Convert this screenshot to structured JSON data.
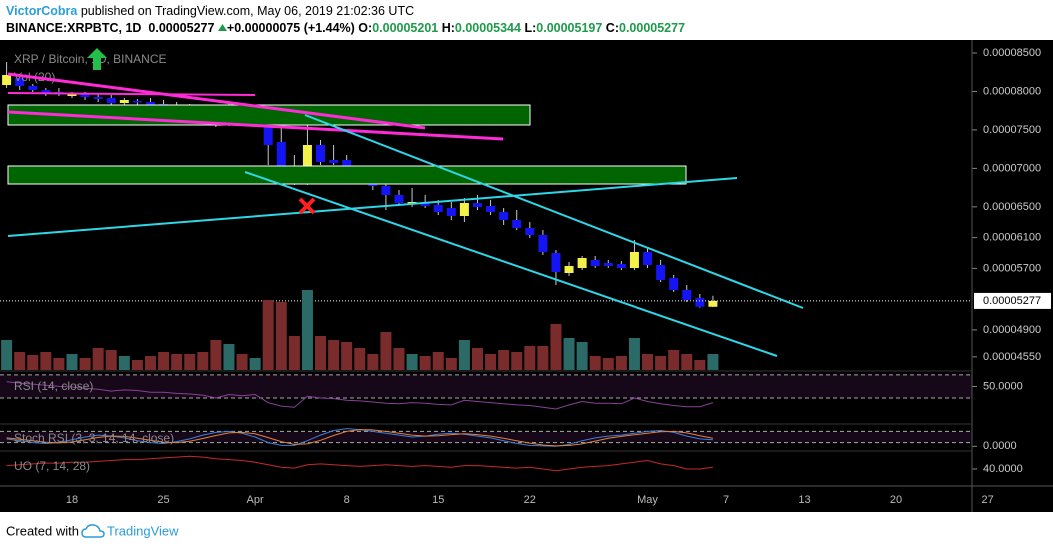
{
  "header": {
    "author": "VictorCobra",
    "published": "published on TradingView.com, May 06, 2019 21:02:36 UTC",
    "symbol": "BINANCE:XRPBTC, 1D",
    "change": "+0.00000075 (+1.44%)",
    "o": "O:",
    "h": "H:",
    "l": "L:",
    "c": "C:"
  },
  "footer": {
    "created": "Created with",
    "brand": "TradingView"
  },
  "chart_data": [
    {
      "type": "candlestick",
      "title": "XRP / Bitcoin, 1D, BINANCE",
      "categories": [
        null,
        null,
        null,
        null,
        null,
        "18",
        null,
        null,
        null,
        null,
        null,
        null,
        "25",
        null,
        null,
        null,
        null,
        null,
        null,
        "Apr",
        null,
        null,
        null,
        null,
        null,
        null,
        "8",
        null,
        null,
        null,
        null,
        null,
        null,
        "15",
        null,
        null,
        null,
        null,
        null,
        null,
        "22",
        null,
        null,
        null,
        null,
        null,
        null,
        null,
        null,
        "May",
        null,
        null,
        null,
        null,
        null,
        "7",
        null,
        null,
        null,
        null,
        null,
        "13",
        null,
        null,
        null,
        null,
        null,
        null,
        "20",
        null,
        null,
        null,
        null,
        null,
        null,
        "27"
      ],
      "open": [
        8.084e-05,
        8.175e-05,
        8.071e-05,
        8.019e-05,
        7.993e-05,
        7.941e-05,
        7.967e-05,
        7.928e-05,
        7.915e-05,
        7.85e-05,
        7.876e-05,
        7.863e-05,
        7.837e-05,
        7.824e-05,
        7.798e-05,
        7.759e-05,
        7.681e-05,
        7.577e-05,
        7.655e-05,
        7.603e-05,
        7.629e-05,
        7.343e-05,
        7.005e-05,
        6.849e-05,
        7.304e-05,
        7.109e-05,
        7.109e-05,
        6.953e-05,
        6.875e-05,
        6.771e-05,
        6.654e-05,
        6.537e-05,
        6.563e-05,
        6.524e-05,
        6.485e-05,
        6.381e-05,
        6.55e-05,
        6.511e-05,
        6.433e-05,
        6.329e-05,
        6.225e-05,
        6.134e-05,
        5.9e-05,
        5.64e-05,
        5.705e-05,
        5.809e-05,
        5.77e-05,
        5.757e-05,
        5.705e-05,
        5.913e-05,
        5.744e-05,
        5.575e-05,
        5.419e-05,
        5.315e-05,
        5.201e-05,
        null,
        null,
        null,
        null,
        null,
        null,
        null,
        null,
        null,
        null,
        null,
        null,
        null,
        null,
        null,
        null,
        null,
        null,
        null,
        null,
        null
      ],
      "high": [
        8.383e-05,
        8.201e-05,
        8.097e-05,
        8.045e-05,
        8.045e-05,
        7.993e-05,
        7.993e-05,
        7.98e-05,
        7.954e-05,
        7.915e-05,
        7.902e-05,
        7.915e-05,
        7.889e-05,
        7.863e-05,
        7.837e-05,
        7.811e-05,
        7.733e-05,
        7.837e-05,
        7.707e-05,
        7.733e-05,
        7.668e-05,
        7.525e-05,
        7.174e-05,
        7.694e-05,
        7.369e-05,
        7.304e-05,
        7.174e-05,
        7.005e-05,
        6.979e-05,
        6.823e-05,
        6.719e-05,
        6.745e-05,
        6.654e-05,
        6.589e-05,
        6.563e-05,
        6.615e-05,
        6.654e-05,
        6.589e-05,
        6.485e-05,
        6.459e-05,
        6.303e-05,
        6.199e-05,
        5.939e-05,
        5.783e-05,
        5.861e-05,
        5.861e-05,
        5.809e-05,
        5.796e-05,
        6.069e-05,
        5.965e-05,
        5.809e-05,
        5.614e-05,
        5.484e-05,
        5.367e-05,
        5.344e-05,
        null,
        null,
        null,
        null,
        null,
        null,
        null,
        null,
        null,
        null,
        null,
        null,
        null,
        null,
        null,
        null,
        null,
        null,
        null,
        null,
        null
      ],
      "low": [
        8.045e-05,
        8.019e-05,
        7.993e-05,
        7.941e-05,
        7.941e-05,
        7.915e-05,
        7.889e-05,
        7.863e-05,
        7.811e-05,
        7.824e-05,
        7.824e-05,
        7.785e-05,
        7.785e-05,
        7.733e-05,
        7.707e-05,
        7.655e-05,
        7.538e-05,
        7.551e-05,
        7.577e-05,
        7.577e-05,
        7.044e-05,
        6.823e-05,
        6.784e-05,
        6.784e-05,
        7.044e-05,
        7.044e-05,
        6.901e-05,
        6.823e-05,
        6.719e-05,
        6.459e-05,
        6.524e-05,
        6.498e-05,
        6.485e-05,
        6.394e-05,
        6.329e-05,
        6.303e-05,
        6.459e-05,
        6.394e-05,
        6.264e-05,
        6.199e-05,
        6.095e-05,
        5.874e-05,
        5.484e-05,
        5.601e-05,
        5.679e-05,
        5.705e-05,
        5.705e-05,
        5.679e-05,
        5.679e-05,
        5.705e-05,
        5.523e-05,
        5.393e-05,
        5.263e-05,
        5.19e-05,
        5.197e-05,
        null,
        null,
        null,
        null,
        null,
        null,
        null,
        null,
        null,
        null,
        null,
        null,
        null,
        null,
        null,
        null,
        null,
        null,
        null,
        null,
        null
      ],
      "close": [
        8.214e-05,
        8.071e-05,
        8.019e-05,
        7.98e-05,
        7.967e-05,
        7.98e-05,
        7.928e-05,
        7.902e-05,
        7.85e-05,
        7.889e-05,
        7.863e-05,
        7.811e-05,
        7.824e-05,
        7.798e-05,
        7.759e-05,
        7.681e-05,
        7.577e-05,
        7.668e-05,
        7.616e-05,
        7.655e-05,
        7.304e-05,
        6.979e-05,
        6.823e-05,
        7.304e-05,
        7.083e-05,
        7.07e-05,
        6.953e-05,
        6.875e-05,
        6.771e-05,
        6.654e-05,
        6.55e-05,
        6.563e-05,
        6.511e-05,
        6.433e-05,
        6.381e-05,
        6.55e-05,
        6.498e-05,
        6.433e-05,
        6.329e-05,
        6.225e-05,
        6.134e-05,
        5.913e-05,
        5.653e-05,
        5.731e-05,
        5.835e-05,
        5.731e-05,
        5.731e-05,
        5.705e-05,
        5.913e-05,
        5.744e-05,
        5.549e-05,
        5.419e-05,
        5.289e-05,
        5.201e-05,
        5.277e-05,
        null,
        null,
        null,
        null,
        null,
        null,
        null,
        null,
        null,
        null,
        null,
        null,
        null,
        null,
        null,
        null,
        null,
        null,
        null,
        null,
        null
      ],
      "up_color": "#f2f24a",
      "down_color": "#1414f5",
      "wick_color": "#c8c8c8",
      "ylim": [
        4.379e-05,
        8.617e-05
      ],
      "yticks": [
        {
          "value": 8.5e-05,
          "label": "0.00008500"
        },
        {
          "value": 8e-05,
          "label": "0.00008000"
        },
        {
          "value": 7.5e-05,
          "label": "0.00007500"
        },
        {
          "value": 7e-05,
          "label": "0.00007000"
        },
        {
          "value": 6.5e-05,
          "label": "0.00006500"
        },
        {
          "value": 6.1e-05,
          "label": "0.00006100"
        },
        {
          "value": 5.7e-05,
          "label": "0.00005700"
        },
        {
          "value": 4.9e-05,
          "label": "0.00004900"
        },
        {
          "value": 4.55e-05,
          "label": "0.00004550"
        }
      ]
    },
    {
      "type": "bar",
      "title": "Vol (20)",
      "values": [
        30,
        18,
        15,
        18,
        12,
        16,
        12,
        22,
        20,
        14,
        10,
        14,
        18,
        16,
        16,
        18,
        30,
        26,
        16,
        12,
        70,
        68,
        34,
        80,
        34,
        30,
        28,
        22,
        16,
        38,
        22,
        16,
        14,
        18,
        12,
        30,
        22,
        16,
        20,
        18,
        24,
        24,
        46,
        32,
        28,
        14,
        12,
        14,
        32,
        16,
        14,
        20,
        16,
        10,
        16,
        null,
        null,
        null,
        null,
        null,
        null,
        null,
        null,
        null,
        null,
        null,
        null,
        null,
        null,
        null,
        null,
        null,
        null,
        null,
        null,
        null
      ],
      "up_color": "#2c6a68",
      "down_color": "#7a2c2c",
      "ylim": [
        0,
        100
      ]
    },
    {
      "type": "line",
      "title": "RSI (14, close)",
      "series": [
        {
          "color": "#8a3f9a",
          "values": [
            58,
            56,
            54,
            52,
            50,
            49,
            47,
            45,
            42,
            44,
            43,
            40,
            40,
            38,
            37,
            35,
            30,
            36,
            34,
            36,
            22,
            16,
            14,
            33,
            30,
            29,
            26,
            25,
            23,
            21,
            20,
            22,
            21,
            19,
            18,
            26,
            24,
            22,
            20,
            18,
            17,
            14,
            11,
            18,
            24,
            21,
            21,
            20,
            30,
            24,
            20,
            17,
            15,
            15,
            22,
            null,
            null,
            null,
            null,
            null,
            null,
            null,
            null,
            null,
            null,
            null,
            null,
            null,
            null,
            null,
            null,
            null,
            null,
            null,
            null,
            null
          ]
        }
      ],
      "ylim": [
        -15,
        75
      ],
      "yticks": [
        {
          "value": 50,
          "label": "50.0000"
        }
      ],
      "bands": [
        30,
        70
      ]
    },
    {
      "type": "line",
      "title": "Stoch RSI (3, 3, 14, 14, close)",
      "series": [
        {
          "color": "#3d7fd8",
          "values": [
            40,
            30,
            20,
            15,
            20,
            35,
            50,
            60,
            55,
            45,
            30,
            20,
            15,
            25,
            40,
            60,
            75,
            80,
            70,
            50,
            20,
            5,
            5,
            30,
            60,
            85,
            95,
            90,
            80,
            70,
            60,
            50,
            55,
            65,
            70,
            65,
            55,
            45,
            30,
            15,
            5,
            2,
            0,
            10,
            30,
            45,
            55,
            60,
            70,
            80,
            85,
            75,
            55,
            40,
            35,
            null,
            null,
            null,
            null,
            null,
            null,
            null,
            null,
            null,
            null,
            null,
            null,
            null,
            null,
            null,
            null,
            null,
            null,
            null,
            null,
            null
          ]
        },
        {
          "color": "#e0833a",
          "values": [
            45,
            38,
            30,
            22,
            18,
            23,
            35,
            48,
            55,
            53,
            43,
            32,
            22,
            20,
            27,
            42,
            58,
            72,
            75,
            67,
            47,
            25,
            10,
            13,
            32,
            58,
            80,
            90,
            88,
            80,
            70,
            60,
            55,
            57,
            63,
            67,
            63,
            55,
            43,
            30,
            17,
            7,
            2,
            4,
            13,
            28,
            43,
            53,
            62,
            70,
            78,
            80,
            72,
            57,
            43,
            null,
            null,
            null,
            null,
            null,
            null,
            null,
            null,
            null,
            null,
            null,
            null,
            null,
            null,
            null,
            null,
            null,
            null,
            null,
            null,
            null
          ]
        }
      ],
      "ylim": [
        -20,
        120
      ],
      "yticks": [
        {
          "value": 0,
          "label": "0.0000"
        }
      ],
      "bands": [
        20,
        80
      ]
    },
    {
      "type": "line",
      "title": "UO (7, 14, 28)",
      "series": [
        {
          "color": "#c42a2a",
          "values": [
            44,
            45,
            46,
            47,
            47,
            48,
            48,
            49,
            50,
            51,
            51,
            52,
            53,
            54,
            55,
            54,
            52,
            51,
            50,
            48,
            45,
            42,
            41,
            45,
            46,
            45,
            44,
            43,
            44,
            45,
            44,
            43,
            44,
            43,
            42,
            44,
            44,
            43,
            42,
            41,
            42,
            40,
            38,
            40,
            42,
            43,
            44,
            46,
            48,
            50,
            46,
            44,
            40,
            40,
            42,
            null,
            null,
            null,
            null,
            null,
            null,
            null,
            null,
            null,
            null,
            null,
            null,
            null,
            null,
            null,
            null,
            null,
            null,
            null,
            null,
            null
          ]
        }
      ],
      "ylim": [
        20,
        60
      ],
      "yticks": [
        {
          "value": 40,
          "label": "40.0000"
        }
      ]
    }
  ]
}
